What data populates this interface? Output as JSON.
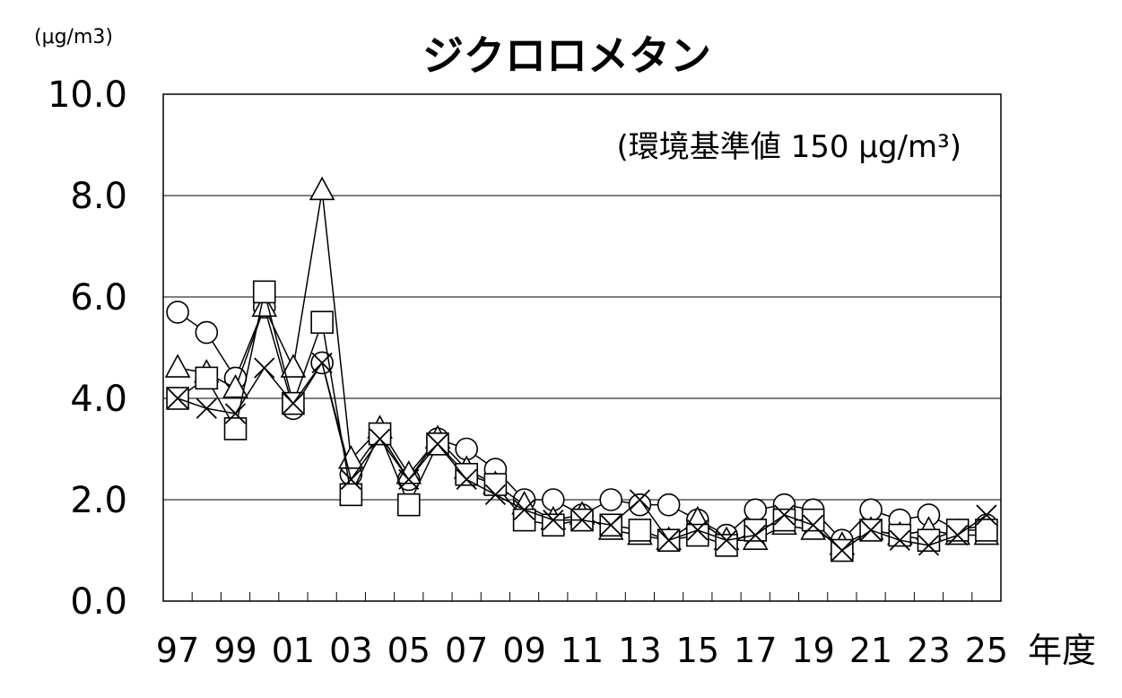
{
  "chart_data": {
    "type": "line",
    "title": "ジクロロメタン",
    "unit_label": "(μg/m3)",
    "annotation": "(環境基準値 150 μg/m³)",
    "xlabel": "年度",
    "ylabel": "",
    "ylim": [
      0,
      10
    ],
    "yticks": [
      "0.0",
      "2.0",
      "4.0",
      "6.0",
      "8.0",
      "10.0"
    ],
    "xtick_labels": [
      "97",
      "99",
      "01",
      "03",
      "05",
      "07",
      "09",
      "11",
      "13",
      "15",
      "17",
      "19",
      "21",
      "23",
      "25"
    ],
    "x": [
      "97",
      "98",
      "99",
      "00",
      "01",
      "02",
      "03",
      "04",
      "05",
      "06",
      "07",
      "08",
      "09",
      "10",
      "11",
      "12",
      "13",
      "14",
      "15",
      "16",
      "17",
      "18",
      "19",
      "20",
      "21",
      "22",
      "23",
      "24",
      "25"
    ],
    "grid": true,
    "legend": "none",
    "series": [
      {
        "marker": "circle",
        "values": [
          5.7,
          5.3,
          4.4,
          5.8,
          3.8,
          4.7,
          2.5,
          3.3,
          2.4,
          3.2,
          3.0,
          2.6,
          2.0,
          2.0,
          1.7,
          2.0,
          1.9,
          1.9,
          1.6,
          1.3,
          1.8,
          1.9,
          1.8,
          1.2,
          1.8,
          1.6,
          1.7,
          1.4,
          1.5
        ]
      },
      {
        "marker": "triangle",
        "values": [
          4.6,
          4.5,
          4.2,
          5.8,
          4.6,
          8.1,
          2.8,
          3.4,
          2.5,
          3.2,
          2.6,
          2.3,
          1.9,
          1.6,
          1.7,
          1.4,
          1.3,
          1.2,
          1.6,
          1.2,
          1.2,
          1.5,
          1.4,
          1.1,
          1.4,
          1.3,
          1.4,
          1.3,
          1.3
        ]
      },
      {
        "marker": "square",
        "values": [
          4.0,
          4.4,
          3.4,
          6.1,
          3.9,
          5.5,
          2.1,
          3.3,
          1.9,
          3.1,
          2.5,
          2.3,
          1.6,
          1.5,
          1.6,
          1.5,
          1.4,
          1.2,
          1.3,
          1.1,
          1.4,
          1.6,
          1.6,
          1.0,
          1.4,
          1.3,
          1.2,
          1.4,
          1.4
        ]
      },
      {
        "marker": "cross",
        "values": [
          4.0,
          3.8,
          3.7,
          4.6,
          3.9,
          4.7,
          2.4,
          3.2,
          2.4,
          3.1,
          2.4,
          2.1,
          1.8,
          1.6,
          1.6,
          1.5,
          2.0,
          1.2,
          1.4,
          1.2,
          1.3,
          1.7,
          1.5,
          1.0,
          1.4,
          1.2,
          1.1,
          1.3,
          1.7
        ]
      }
    ]
  }
}
